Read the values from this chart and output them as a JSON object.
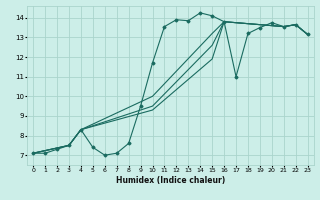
{
  "xlabel": "Humidex (Indice chaleur)",
  "ylabel": "",
  "bg_color": "#cceee8",
  "grid_color": "#aad4cc",
  "line_color": "#1a6b60",
  "xlim": [
    -0.5,
    23.5
  ],
  "ylim": [
    6.5,
    14.6
  ],
  "xticks": [
    0,
    1,
    2,
    3,
    4,
    5,
    6,
    7,
    8,
    9,
    10,
    11,
    12,
    13,
    14,
    15,
    16,
    17,
    18,
    19,
    20,
    21,
    22,
    23
  ],
  "yticks": [
    7,
    8,
    9,
    10,
    11,
    12,
    13,
    14
  ],
  "line1_x": [
    0,
    1,
    2,
    3,
    4,
    5,
    6,
    7,
    8,
    9,
    10,
    11,
    12,
    13,
    14,
    15,
    16,
    17,
    18,
    19,
    20,
    21,
    22,
    23
  ],
  "line1_y": [
    7.1,
    7.1,
    7.3,
    7.5,
    8.3,
    7.4,
    7.0,
    7.1,
    7.6,
    9.5,
    11.7,
    13.55,
    13.9,
    13.85,
    14.25,
    14.1,
    13.8,
    11.0,
    13.2,
    13.5,
    13.75,
    13.55,
    13.65,
    13.15
  ],
  "line2_x": [
    0,
    3,
    4,
    10,
    15,
    16,
    21,
    22,
    23
  ],
  "line2_y": [
    7.1,
    7.5,
    8.3,
    10.0,
    13.2,
    13.8,
    13.55,
    13.65,
    13.15
  ],
  "line3_x": [
    0,
    3,
    4,
    10,
    15,
    16,
    21,
    22,
    23
  ],
  "line3_y": [
    7.1,
    7.5,
    8.3,
    9.5,
    12.6,
    13.8,
    13.55,
    13.65,
    13.15
  ],
  "line4_x": [
    0,
    3,
    4,
    10,
    15,
    16,
    21,
    22,
    23
  ],
  "line4_y": [
    7.1,
    7.5,
    8.3,
    9.3,
    11.9,
    13.8,
    13.55,
    13.65,
    13.15
  ]
}
